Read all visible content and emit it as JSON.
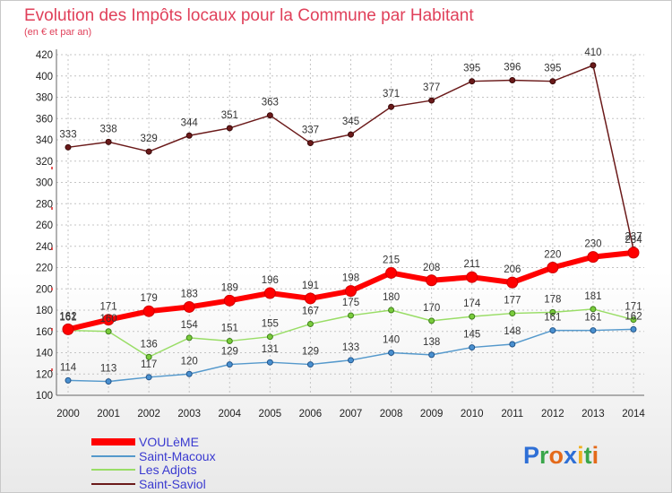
{
  "chart_data": {
    "type": "line",
    "title": "Evolution des Impôts locaux pour la Commune par Habitant",
    "subtitle": "(en € et par an)",
    "xlabel": "",
    "ylabel": "",
    "ylim": [
      100,
      420
    ],
    "yticks": [
      100,
      120,
      140,
      160,
      180,
      200,
      220,
      240,
      260,
      280,
      300,
      320,
      340,
      360,
      380,
      400,
      420
    ],
    "categories": [
      "2000",
      "2001",
      "2002",
      "2003",
      "2004",
      "2005",
      "2006",
      "2007",
      "2008",
      "2009",
      "2010",
      "2011",
      "2012",
      "2013",
      "2014"
    ],
    "grid": true,
    "legend_position": "bottom-left",
    "series": [
      {
        "name": "Saint-Saviol",
        "color": "#6b1a1a",
        "values": [
          333,
          338,
          329,
          344,
          351,
          363,
          337,
          345,
          371,
          377,
          395,
          396,
          395,
          410,
          237
        ]
      },
      {
        "name": "Les Adjots",
        "color": "#88cc55",
        "values": [
          161,
          160,
          136,
          154,
          151,
          155,
          167,
          175,
          180,
          170,
          174,
          177,
          178,
          181,
          171
        ]
      },
      {
        "name": "Saint-Macoux",
        "color": "#5599cc",
        "values": [
          114,
          113,
          117,
          120,
          129,
          131,
          129,
          133,
          140,
          138,
          145,
          148,
          161,
          161,
          162
        ]
      },
      {
        "name": "VOULèME",
        "color": "#ff0000",
        "values": [
          162,
          171,
          179,
          183,
          189,
          196,
          191,
          198,
          215,
          208,
          211,
          206,
          220,
          230,
          234
        ]
      }
    ],
    "legend_order": [
      "VOULèME",
      "Saint-Macoux",
      "Les Adjots",
      "Saint-Saviol"
    ]
  },
  "logo": {
    "text": "Proxiti",
    "letter_colors": [
      "#2e6fd6",
      "#3aa64a",
      "#e46a1a",
      "#2e6fd6",
      "#f0b020",
      "#3aa64a",
      "#e46a1a"
    ]
  }
}
